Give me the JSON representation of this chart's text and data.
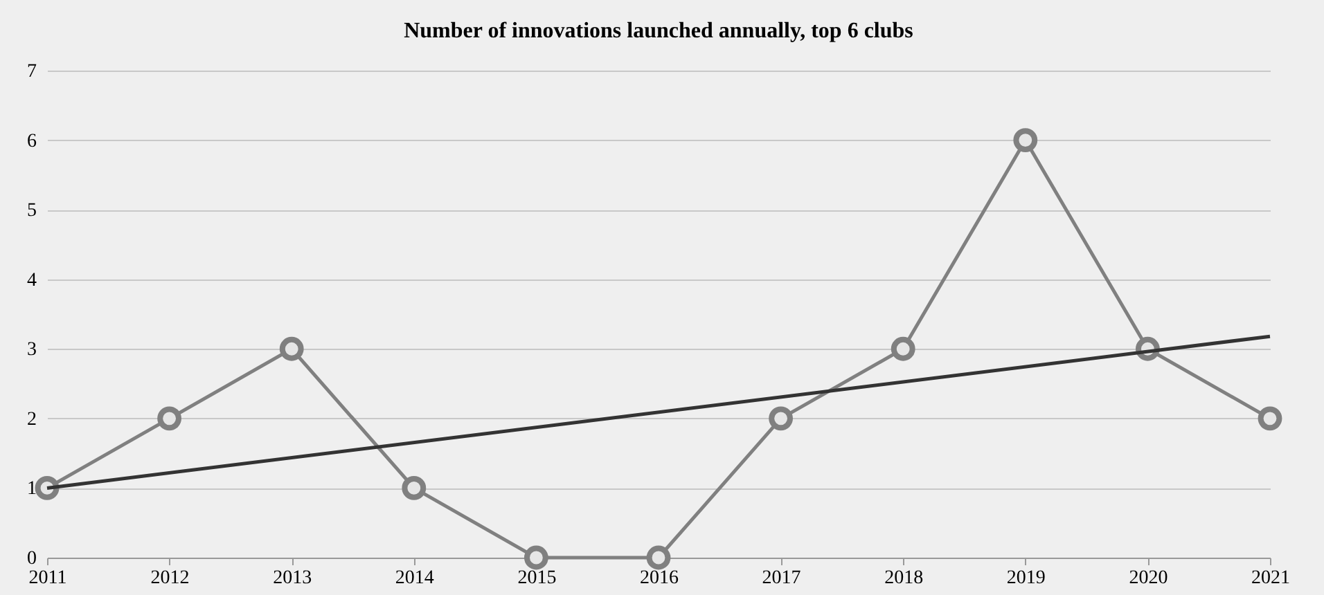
{
  "chart_data": {
    "type": "line",
    "title": "Number of innovations launched annually, top 6 clubs",
    "x": [
      2011,
      2012,
      2013,
      2014,
      2015,
      2016,
      2017,
      2018,
      2019,
      2020,
      2021
    ],
    "series": [
      {
        "color": "#808080",
        "values": [
          1,
          2,
          3,
          1,
          0,
          0,
          2,
          3,
          6,
          3,
          2
        ]
      },
      {
        "type": "line",
        "color": "#333333",
        "x": [
          2011,
          2021
        ],
        "values": [
          1.0,
          3.18
        ],
        "marker": "none"
      }
    ],
    "xlim": [
      2011,
      2021
    ],
    "xticks": [
      2011,
      2012,
      2013,
      2014,
      2015,
      2016,
      2017,
      2018,
      2019,
      2020,
      2021
    ],
    "ylim": [
      0,
      7
    ],
    "yticks": [
      0,
      1,
      2,
      3,
      4,
      5,
      6,
      7
    ],
    "grid": "y",
    "marker": "circle"
  }
}
